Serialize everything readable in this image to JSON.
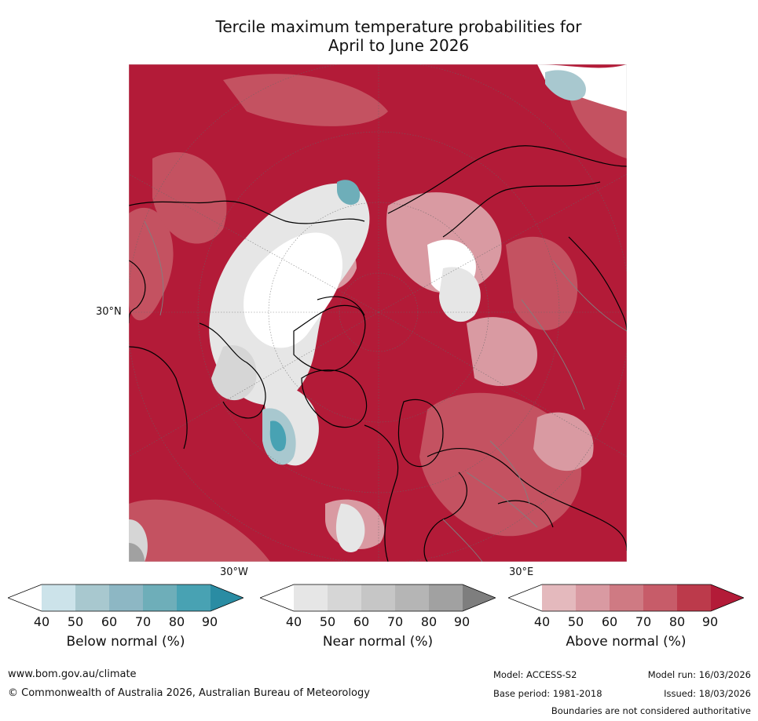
{
  "title_line1": "Tercile maximum temperature probabilities for",
  "title_line2": "April to June 2026",
  "map": {
    "lat_label": "30°N",
    "lon_labels": [
      "30°W",
      "30°E"
    ]
  },
  "legends": [
    {
      "title": "Below normal (%)",
      "ticks": [
        "40",
        "50",
        "60",
        "70",
        "80",
        "90"
      ],
      "colors": [
        "#ffffff",
        "#cce3ea",
        "#a8c8cf",
        "#8db7c4",
        "#6eaeb9",
        "#48a2b3",
        "#2a8ca3"
      ]
    },
    {
      "title": "Near normal (%)",
      "ticks": [
        "40",
        "50",
        "60",
        "70",
        "80",
        "90"
      ],
      "colors": [
        "#ffffff",
        "#e6e6e6",
        "#d6d6d6",
        "#c6c6c6",
        "#b5b5b5",
        "#a1a1a1",
        "#7e7e7e"
      ]
    },
    {
      "title": "Above normal (%)",
      "ticks": [
        "40",
        "50",
        "60",
        "70",
        "80",
        "90"
      ],
      "colors": [
        "#ffffff",
        "#e4b9bd",
        "#d99aa2",
        "#cf7a83",
        "#c75c69",
        "#bc3a4b",
        "#b31b38"
      ]
    }
  ],
  "footer": {
    "website": "www.bom.gov.au/climate",
    "copyright": "© Commonwealth of Australia 2026, Australian Bureau of Meteorology",
    "model": "Model: ACCESS-S2",
    "base_period": "Base period: 1981-2018",
    "model_run": "Model run: 16/03/2026",
    "issued": "Issued: 18/03/2026",
    "disclaimer": "Boundaries are not considered authoritative"
  }
}
